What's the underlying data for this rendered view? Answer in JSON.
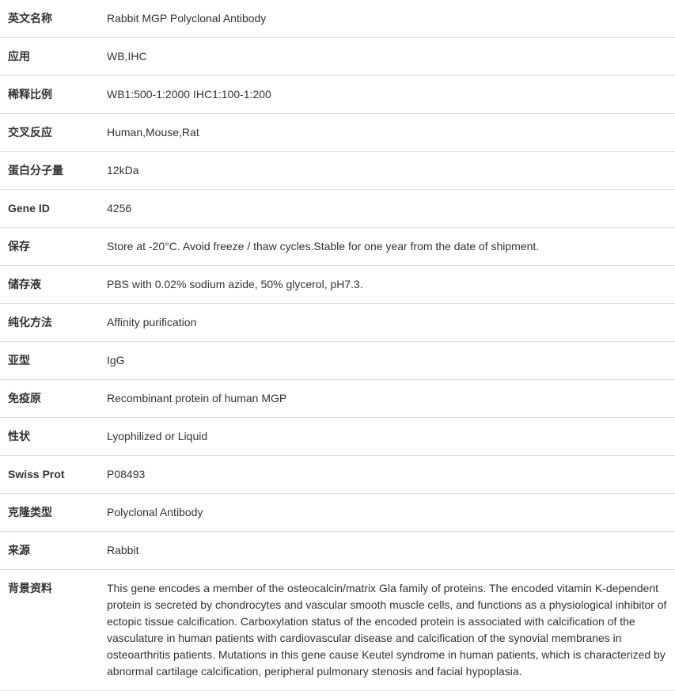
{
  "table": {
    "type": "table",
    "columns": [
      "label",
      "value"
    ],
    "column_widths": [
      "125px",
      "auto"
    ],
    "border_color": "#e0e0e0",
    "row_padding_v": 13,
    "row_padding_h": 10,
    "font_size": 14,
    "label_font_weight": "bold",
    "text_color": "#333333",
    "background_color": "#ffffff",
    "rows": [
      {
        "label": "英文名称",
        "value": "Rabbit MGP Polyclonal Antibody"
      },
      {
        "label": "应用",
        "value": "WB,IHC"
      },
      {
        "label": "稀释比例",
        "value": "WB1:500-1:2000 IHC1:100-1:200"
      },
      {
        "label": "交叉反应",
        "value": "Human,Mouse,Rat"
      },
      {
        "label": "蛋白分子量",
        "value": "12kDa"
      },
      {
        "label": "Gene ID",
        "value": "4256"
      },
      {
        "label": "保存",
        "value": "Store at -20°C. Avoid freeze / thaw cycles.Stable for one year from the date of shipment."
      },
      {
        "label": "储存液",
        "value": "PBS with 0.02% sodium azide, 50% glycerol, pH7.3."
      },
      {
        "label": "纯化方法",
        "value": "Affinity purification"
      },
      {
        "label": "亚型",
        "value": "IgG"
      },
      {
        "label": "免疫原",
        "value": "Recombinant protein of human MGP"
      },
      {
        "label": "性状",
        "value": "Lyophilized or Liquid"
      },
      {
        "label": "Swiss Prot",
        "value": "P08493"
      },
      {
        "label": "克隆类型",
        "value": "Polyclonal Antibody"
      },
      {
        "label": "来源",
        "value": "Rabbit"
      },
      {
        "label": "背景资料",
        "value": "This gene encodes a member of the osteocalcin/matrix Gla family of proteins. The encoded vitamin K-dependent protein is secreted by chondrocytes and vascular smooth muscle cells, and functions as a physiological inhibitor of ectopic tissue calcification. Carboxylation status of the encoded protein is associated with calcification of the vasculature in human patients with cardiovascular disease and calcification of the synovial membranes in osteoarthritis patients. Mutations in this gene cause Keutel syndrome in human patients, which is characterized by abnormal cartilage calcification, peripheral pulmonary stenosis and facial hypoplasia."
      }
    ]
  }
}
